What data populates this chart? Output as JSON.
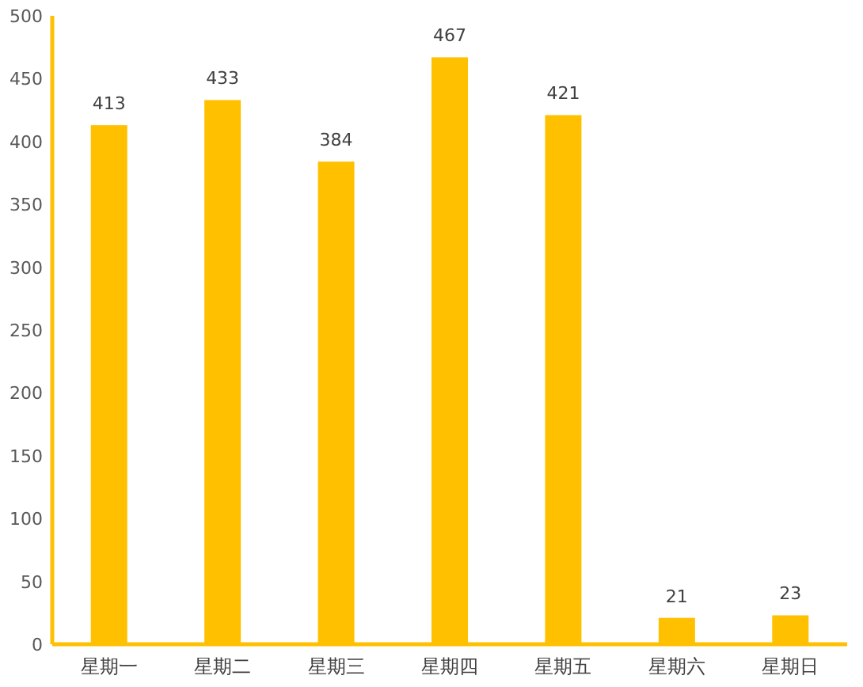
{
  "chart_data": {
    "type": "bar",
    "categories": [
      "星期一",
      "星期二",
      "星期三",
      "星期四",
      "星期五",
      "星期六",
      "星期日"
    ],
    "values": [
      413,
      433,
      384,
      467,
      421,
      21,
      23
    ],
    "color": "#ffc000",
    "ylim": [
      0,
      500
    ],
    "yticks": [
      0,
      50,
      100,
      150,
      200,
      250,
      300,
      350,
      400,
      450,
      500
    ],
    "data_labels": true
  }
}
